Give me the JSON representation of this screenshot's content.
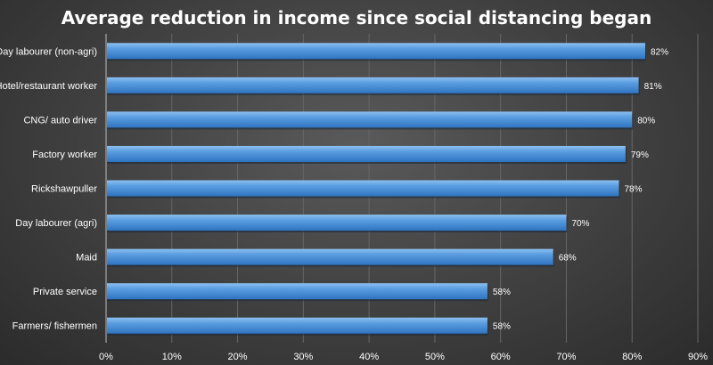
{
  "chart_data": {
    "type": "bar",
    "orientation": "horizontal",
    "title": "Average reduction in income since social distancing began",
    "categories": [
      "Day labourer (non-agri)",
      "Hotel/restaurant worker",
      "CNG/ auto driver",
      "Factory worker",
      "Rickshawpuller",
      "Day labourer (agri)",
      "Maid",
      "Private service",
      "Farmers/ fishermen"
    ],
    "values": [
      82,
      81,
      80,
      79,
      78,
      70,
      68,
      58,
      58
    ],
    "value_labels": [
      "82%",
      "81%",
      "80%",
      "79%",
      "78%",
      "70%",
      "68%",
      "58%",
      "58%"
    ],
    "xlim": [
      0,
      90
    ],
    "xticks": [
      0,
      10,
      20,
      30,
      40,
      50,
      60,
      70,
      80,
      90
    ],
    "xtick_labels": [
      "0%",
      "10%",
      "20%",
      "30%",
      "40%",
      "50%",
      "60%",
      "70%",
      "80%",
      "90%"
    ],
    "xlabel": "",
    "ylabel": "",
    "grid": true,
    "bar_color": "#4a90d9"
  }
}
